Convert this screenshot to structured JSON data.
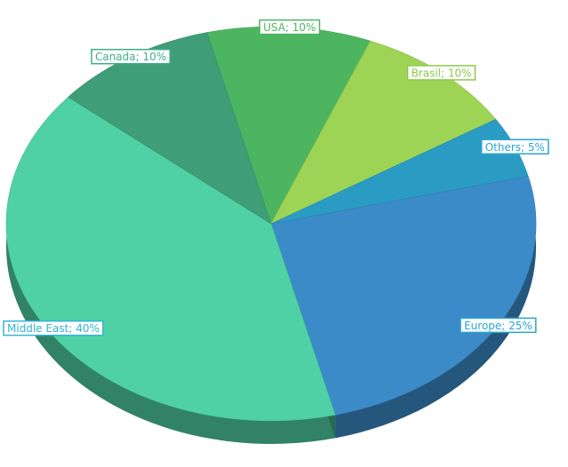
{
  "chart_data": {
    "type": "pie",
    "values": [
      10,
      10,
      5,
      25,
      40,
      10
    ],
    "value_labels": [
      "USA; 10%",
      "Brasil; 10%",
      "Others; 5%",
      "Europe; 25%",
      "Middle East; 40%",
      "Canada; 10%"
    ],
    "colors": [
      "#4db560",
      "#9ed456",
      "#2a9cc4",
      "#3b8bc8",
      "#4fd1a5",
      "#3f9e78"
    ],
    "label_colors": [
      "#4db560",
      "#8cc84a",
      "#2aa6d0",
      "#2aa6d0",
      "#33b4d8",
      "#3fae8a"
    ]
  }
}
